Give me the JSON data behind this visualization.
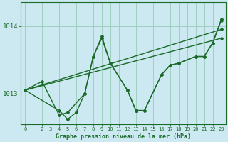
{
  "background_color": "#cce8f0",
  "grid_color": "#99ccbb",
  "line_color": "#1a6b2a",
  "title": "Graphe pression niveau de la mer (hPa)",
  "xlabel_ticks": [
    0,
    2,
    3,
    4,
    5,
    6,
    7,
    8,
    9,
    10,
    11,
    12,
    13,
    14,
    15,
    16,
    17,
    18,
    19,
    20,
    21,
    22,
    23
  ],
  "ylim": [
    1012.55,
    1014.35
  ],
  "xlim": [
    -0.5,
    23.5
  ],
  "yticks": [
    1013,
    1014
  ],
  "series": [
    {
      "x": [
        0,
        23
      ],
      "y": [
        1013.05,
        1013.82
      ]
    },
    {
      "x": [
        0,
        23
      ],
      "y": [
        1013.05,
        1013.95
      ]
    },
    {
      "x": [
        0,
        2,
        4,
        5,
        7,
        8,
        9,
        10,
        12,
        13,
        14,
        16,
        17,
        18,
        20,
        21,
        22,
        23
      ],
      "y": [
        1013.05,
        1013.18,
        1012.68,
        1012.72,
        1013.0,
        1013.55,
        1013.82,
        1013.45,
        1013.05,
        1012.75,
        1012.75,
        1013.28,
        1013.42,
        1013.45,
        1013.55,
        1013.55,
        1013.75,
        1014.1
      ]
    },
    {
      "x": [
        0,
        4,
        5,
        6,
        7,
        8,
        9,
        10,
        12,
        13,
        14,
        16,
        17,
        18,
        20,
        21,
        22,
        23
      ],
      "y": [
        1013.05,
        1012.75,
        1012.62,
        1012.72,
        1013.0,
        1013.55,
        1013.85,
        1013.45,
        1013.05,
        1012.75,
        1012.75,
        1013.28,
        1013.42,
        1013.45,
        1013.55,
        1013.55,
        1013.75,
        1014.08
      ]
    }
  ]
}
